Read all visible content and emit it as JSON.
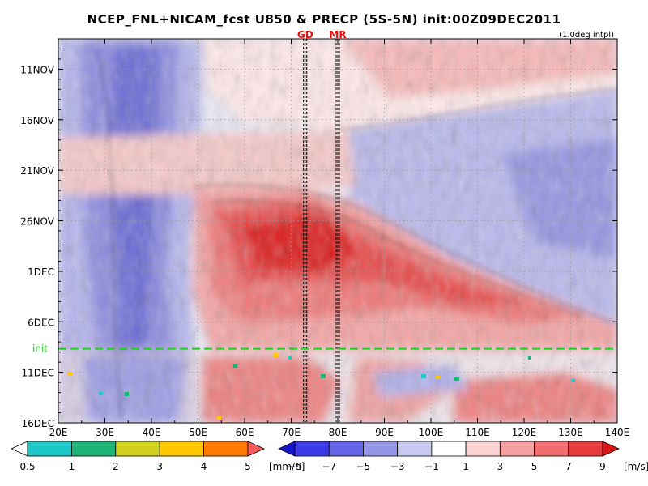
{
  "chart_data": {
    "type": "heatmap",
    "title": "NCEP_FNL+NICAM_fcst U850 & PRECP (5S-5N) init:00Z09DEC2011",
    "note": "(1.0deg intpl)",
    "x_ticks": [
      "20E",
      "30E",
      "40E",
      "50E",
      "60E",
      "70E",
      "80E",
      "90E",
      "100E",
      "110E",
      "120E",
      "130E",
      "140E"
    ],
    "x_range": [
      20,
      140
    ],
    "y_ticks": [
      "11NOV",
      "16NOV",
      "21NOV",
      "26NOV",
      "1DEC",
      "6DEC",
      "11DEC",
      "16DEC"
    ],
    "y_range": [
      "8NOV",
      "16DEC"
    ],
    "init_label": "init",
    "init_date": "9DEC",
    "stations": [
      {
        "label": "GD",
        "lon": 73
      },
      {
        "label": "MR",
        "lon": 80
      }
    ],
    "precip_colorbar": {
      "labels": [
        "0.5",
        "1",
        "2",
        "3",
        "4",
        "5"
      ],
      "unit": "[mm/h]",
      "colors": [
        "#ffffff",
        "#1ec8c8",
        "#1eb478",
        "#d2d21e",
        "#ffc800",
        "#ff7800",
        "#ff5a5a"
      ]
    },
    "u850_colorbar": {
      "labels": [
        "−9",
        "−7",
        "−5",
        "−3",
        "−1",
        "1",
        "3",
        "5",
        "7",
        "9"
      ],
      "unit": "[m/s]",
      "colors": [
        "#1414c8",
        "#3c3ce6",
        "#6464e6",
        "#9696e6",
        "#c8c8f0",
        "#ffffff",
        "#fad2d2",
        "#f5a0a0",
        "#f06e6e",
        "#e63c3c",
        "#dc1414"
      ]
    }
  }
}
